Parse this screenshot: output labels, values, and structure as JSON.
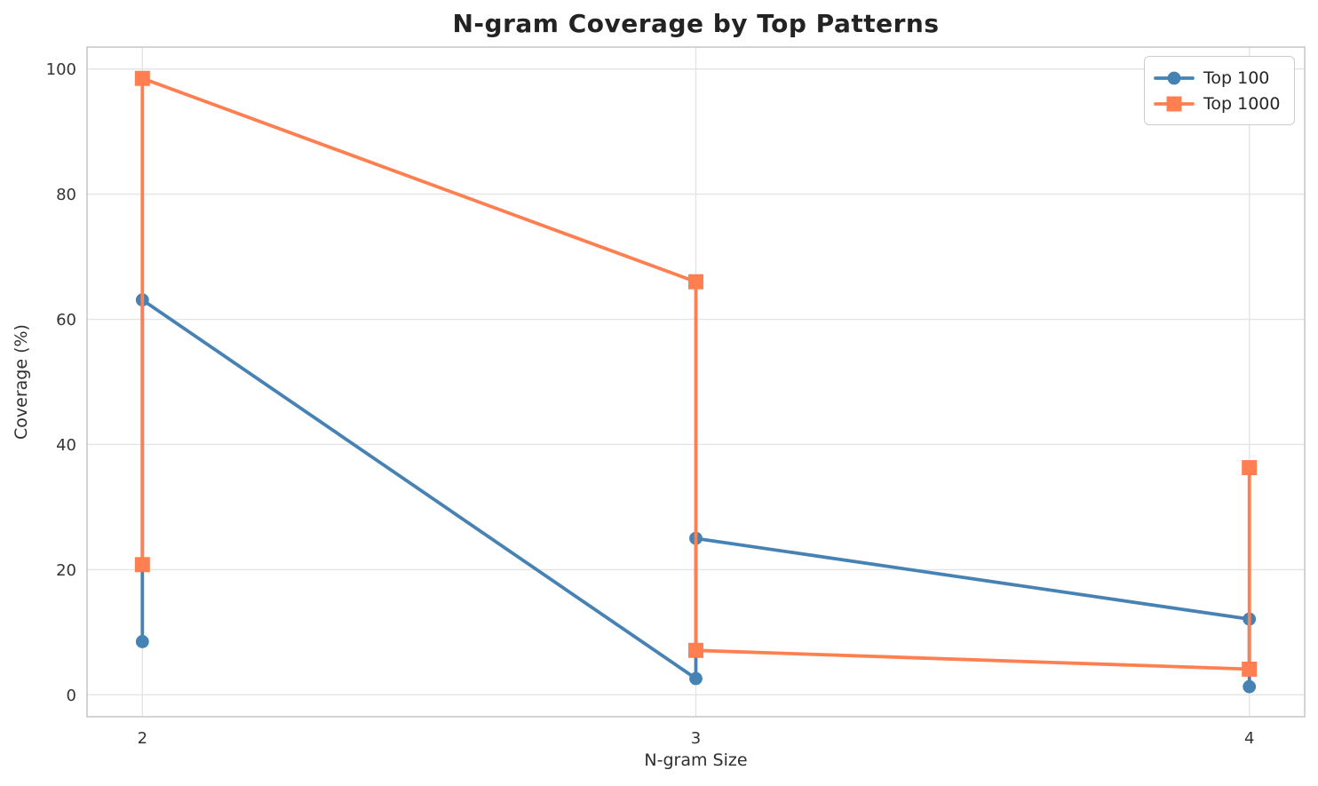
{
  "chart_data": {
    "type": "line",
    "title": "N-gram Coverage by Top Patterns",
    "xlabel": "N-gram Size",
    "ylabel": "Coverage (%)",
    "xlim": [
      1.9,
      4.1
    ],
    "ylim": [
      -3.5,
      103.5
    ],
    "xticks": [
      2,
      3,
      4
    ],
    "yticks": [
      0,
      20,
      40,
      60,
      80,
      100
    ],
    "grid": true,
    "grid_color": "#e4e4e4",
    "spine_color": "#c9c9c9",
    "legend_position": "upper right",
    "series": [
      {
        "name": "Top 100",
        "color": "#4682B4",
        "marker": "circle",
        "points": [
          [
            2,
            8.5
          ],
          [
            2,
            63.1
          ],
          [
            3,
            2.6
          ],
          [
            3,
            25.0
          ],
          [
            4,
            12.1
          ],
          [
            4,
            1.3
          ]
        ]
      },
      {
        "name": "Top 1000",
        "color": "#FF7F50",
        "marker": "square",
        "points": [
          [
            2,
            20.8
          ],
          [
            2,
            98.5
          ],
          [
            3,
            66.0
          ],
          [
            3,
            7.1
          ],
          [
            4,
            4.1
          ],
          [
            4,
            36.3
          ]
        ]
      }
    ]
  }
}
